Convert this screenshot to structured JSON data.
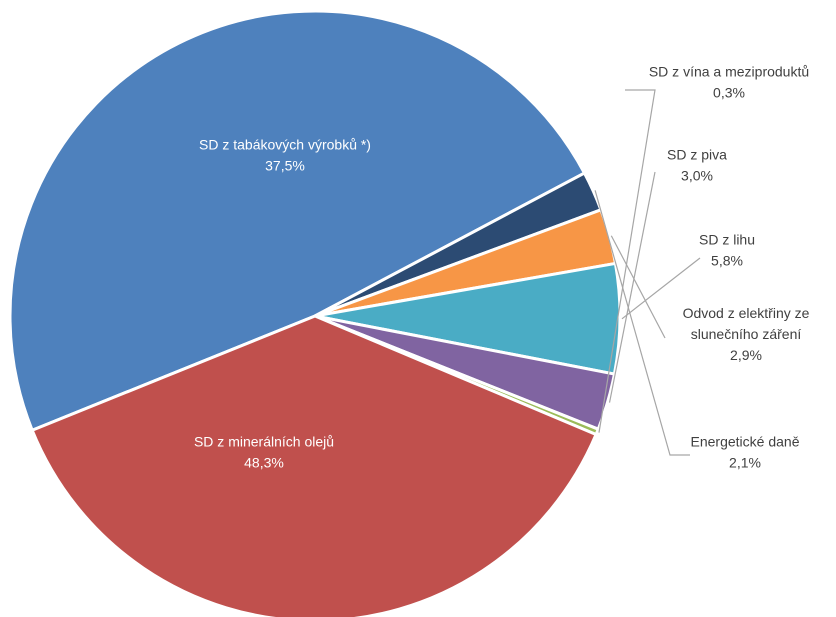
{
  "chart_data": {
    "type": "pie",
    "slices": [
      {
        "label": "SD z minerálních olejů",
        "value_label": "48,3%",
        "value": 48.3,
        "color": "#4e81bd"
      },
      {
        "label": "Energetické daně",
        "value_label": "2,1%",
        "value": 2.1,
        "color": "#2c4b73"
      },
      {
        "label": "Odvod z elektřiny ze slunečního záření",
        "label_lines": [
          "Odvod z elektřiny ze",
          "slunečního záření"
        ],
        "value_label": "2,9%",
        "value": 2.9,
        "color": "#f79646"
      },
      {
        "label": "SD z lihu",
        "value_label": "5,8%",
        "value": 5.8,
        "color": "#4aacc5"
      },
      {
        "label": "SD z piva",
        "value_label": "3,0%",
        "value": 3.0,
        "color": "#8064a1"
      },
      {
        "label": "SD z vína a meziproduktů",
        "value_label": "0,3%",
        "value": 0.3,
        "color": "#9bbb59"
      },
      {
        "label": "SD z tabákových výrobků *)",
        "value_label": "37,5%",
        "value": 37.5,
        "color": "#c0504d"
      }
    ],
    "legend": "none",
    "label_positions": "inside for large slices, outside with leader lines for small slices"
  }
}
